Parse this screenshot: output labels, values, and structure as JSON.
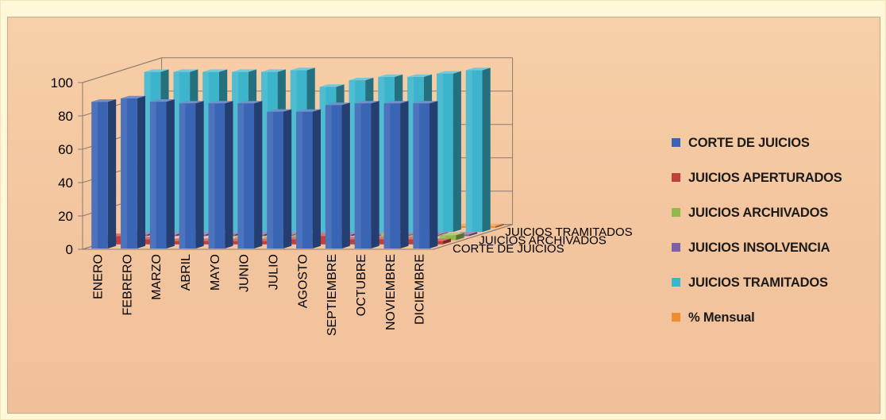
{
  "chart_data": {
    "type": "bar",
    "variant": "3d-column",
    "title": "",
    "xlabel": "",
    "ylabel": "",
    "ylim": [
      0,
      100
    ],
    "yticks": [
      0,
      20,
      40,
      60,
      80,
      100
    ],
    "grid": true,
    "legend_position": "right",
    "categories": [
      "ENERO",
      "FEBRERO",
      "MARZO",
      "ABRIL",
      "MAYO",
      "JUNIO",
      "JULIO",
      "AGOSTO",
      "SEPTIEMBRE",
      "OCTUBRE",
      "NOVIEMBRE",
      "DICIEMBRE"
    ],
    "depth_labels": [
      "CORTE DE JUICIOS",
      "JUICIOS ARCHIVADOS",
      "JUICIOS TRAMITADOS"
    ],
    "series": [
      {
        "name": "CORTE DE JUICIOS",
        "color": "#3a64b4",
        "values": [
          88,
          90,
          88,
          87,
          87,
          87,
          82,
          82,
          86,
          87,
          87,
          87
        ]
      },
      {
        "name": "JUICIOS APERTURADOS",
        "color": "#c0403c",
        "values": [
          5,
          3,
          2,
          2,
          2,
          2,
          3,
          5,
          3,
          3,
          3,
          2
        ]
      },
      {
        "name": "JUICIOS ARCHIVADOS",
        "color": "#93b84a",
        "values": [
          0,
          0,
          1,
          1,
          2,
          2,
          3,
          3,
          2,
          4,
          3,
          3
        ]
      },
      {
        "name": "JUICIOS INSOLVENCIA",
        "color": "#7e60a4",
        "values": [
          1,
          1,
          1,
          1,
          1,
          1,
          1,
          1,
          1,
          1,
          1,
          1
        ]
      },
      {
        "name": "JUICIOS TRAMITADOS",
        "color": "#3cb4cc",
        "values": [
          96,
          96,
          96,
          96,
          96,
          97,
          87,
          91,
          93,
          93,
          95,
          97
        ]
      },
      {
        "name": "% Mensual",
        "color": "#f08c30",
        "values": [
          1,
          1,
          1,
          1,
          1,
          1,
          1,
          1,
          1,
          1,
          1,
          1
        ]
      }
    ]
  }
}
